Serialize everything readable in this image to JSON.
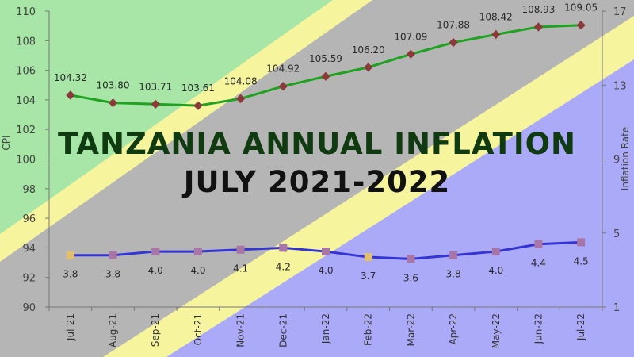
{
  "overlay_title": {
    "line1": "TANZANIA ANNUAL INFLATION",
    "line2": "JULY 2021-2022"
  },
  "colors": {
    "green": "#a7e6a7",
    "yellow": "#f6f59e",
    "gray": "#b5b5b5",
    "blue": "#aaaaf8",
    "cpi_line": "#1fa21f",
    "cpi_marker": "#8b3a3a",
    "rate_line": "#3434d6",
    "rate_marker": "#a776a7",
    "rate_marker_special": "#e0c070"
  },
  "chart_data": {
    "type": "line",
    "categories": [
      "Jul-21",
      "Aug-21",
      "Sep-21",
      "Oct-21",
      "Nov-21",
      "Dec-21",
      "Jan-22",
      "Feb-22",
      "Mar-22",
      "Apr-22",
      "May-22",
      "Jun-22",
      "Jul-22"
    ],
    "ylabel": "CPI",
    "y2label": "Inflation Rate",
    "ylim": [
      90,
      110
    ],
    "y_ticks": [
      90,
      92,
      94,
      96,
      98,
      100,
      102,
      104,
      106,
      108,
      110
    ],
    "y2lim": [
      1,
      17
    ],
    "y2_ticks": [
      1,
      5,
      9,
      13,
      17
    ],
    "series": [
      {
        "axis": "left",
        "values": [
          104.32,
          103.8,
          103.71,
          103.61,
          104.08,
          104.92,
          105.59,
          106.2,
          107.09,
          107.88,
          108.42,
          108.93,
          109.05
        ],
        "labels": [
          "104.32",
          "103.80",
          "103.71",
          "103.61",
          "104.08",
          "104.92",
          "105.59",
          "106.20",
          "107.09",
          "107.88",
          "108.42",
          "108.93",
          "109.05"
        ]
      },
      {
        "axis": "right",
        "values": [
          3.8,
          3.8,
          4.0,
          4.0,
          4.1,
          4.2,
          4.0,
          3.7,
          3.6,
          3.8,
          4.0,
          4.4,
          4.5
        ],
        "labels": [
          "3.8",
          "3.8",
          "4.0",
          "4.0",
          "4.1",
          "4.2",
          "4.0",
          "3.7",
          "3.6",
          "3.8",
          "4.0",
          "4.4",
          "4.5"
        ]
      }
    ]
  }
}
